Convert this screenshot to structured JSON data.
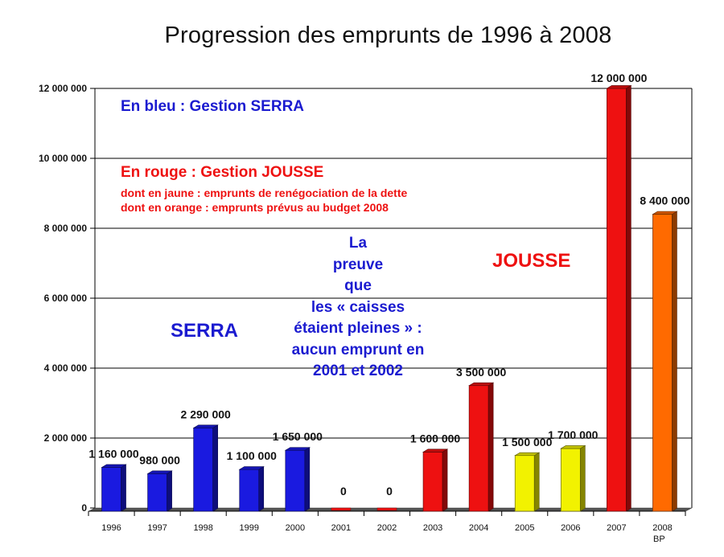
{
  "chart_data": {
    "type": "bar",
    "title": "Progression des emprunts de 1996 à 2008",
    "categories": [
      "1996",
      "1997",
      "1998",
      "1999",
      "2000",
      "2001",
      "2002",
      "2003",
      "2004",
      "2005",
      "2006",
      "2007",
      "2008"
    ],
    "category_suffix_last": "BP",
    "values": [
      1160000,
      980000,
      2290000,
      1100000,
      1650000,
      0,
      0,
      1600000,
      3500000,
      1500000,
      1700000,
      12000000,
      8400000
    ],
    "value_labels": [
      "1 160 000",
      "980 000",
      "2 290 000",
      "1 100 000",
      "1 650 000",
      "0",
      "0",
      "1 600 000",
      "3 500 000",
      "1 500 000",
      "1 700 000",
      "12 000 000",
      "8 400 000"
    ],
    "bar_colors": [
      "#1a1ae0",
      "#1a1ae0",
      "#1a1ae0",
      "#1a1ae0",
      "#1a1ae0",
      "#ee1111",
      "#ee1111",
      "#ee1111",
      "#ee1111",
      "#f2f200",
      "#f2f200",
      "#ee1111",
      "#ff6a00"
    ],
    "ylim": [
      0,
      12000000
    ],
    "yticks": [
      0,
      2000000,
      4000000,
      6000000,
      8000000,
      10000000,
      12000000
    ],
    "ytick_labels": [
      "0",
      "2 000 000",
      "4 000 000",
      "6 000 000",
      "8 000 000",
      "10 000 000",
      "12 000 000"
    ],
    "grid": true,
    "xlabel": "",
    "ylabel": ""
  },
  "annotations": {
    "blue_note": "En bleu : Gestion SERRA",
    "red_note": "En rouge : Gestion JOUSSE",
    "yellow_note": "dont en jaune : emprunts de renégociation de la dette",
    "orange_note": "dont en orange : emprunts prévus au budget 2008",
    "serra_label": "SERRA",
    "jousse_label": "JOUSSE",
    "proof_text": "La\npreuve\nque\nles « caisses\nétaient pleines » :\naucun emprunt en\n2001 et 2002"
  },
  "colors": {
    "blue": "#1a1ae0",
    "red": "#ee1111",
    "yellow": "#f2f200",
    "orange": "#ff6a00",
    "grid": "#000000"
  }
}
